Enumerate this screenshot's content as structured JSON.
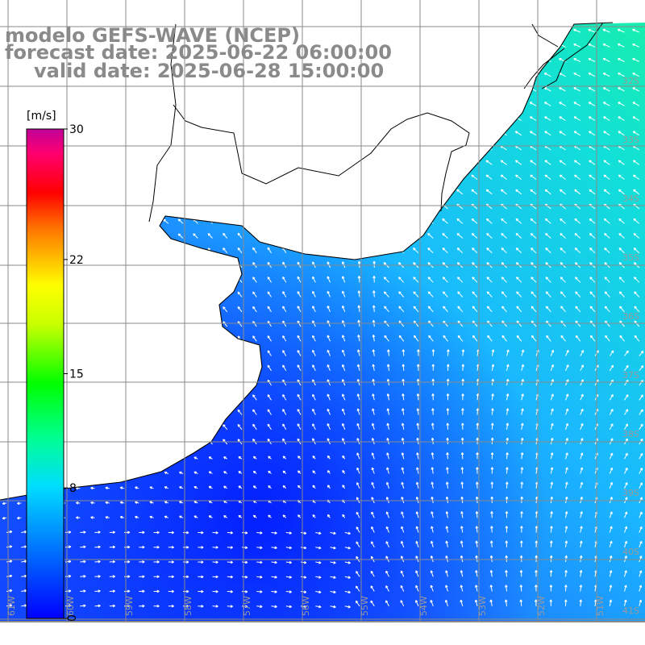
{
  "title": {
    "line1": "modelo GEFS-WAVE (NCEP)",
    "line2": "forecast date: 2025-06-22 06:00:00",
    "line3": "valid date: 2025-06-28 15:00:00"
  },
  "colorbar": {
    "unit": "[m/s]",
    "ticks": [
      {
        "label": "30",
        "value": 30
      },
      {
        "label": "22",
        "value": 22
      },
      {
        "label": "15",
        "value": 15
      },
      {
        "label": "8",
        "value": 8
      },
      {
        "label": "0",
        "value": 0
      }
    ],
    "colors": [
      "#0000ff",
      "#00a0ff",
      "#00e0ff",
      "#00ff80",
      "#00ff00",
      "#c0ff00",
      "#ffff00",
      "#ff8000",
      "#ff0000",
      "#ff0060",
      "#c000a0"
    ]
  },
  "lon_labels": [
    "61W",
    "60W",
    "59W",
    "58W",
    "57W",
    "56W",
    "55W",
    "54W",
    "53W",
    "52W",
    "51W"
  ],
  "lat_labels": [
    "32S",
    "33S",
    "34S",
    "35S",
    "36S",
    "37S",
    "38S",
    "39S",
    "40S",
    "41S"
  ],
  "colors": {
    "land": "#ffffff",
    "grid": "#808080",
    "coast": "#000000",
    "title": "#8a8a8a"
  }
}
